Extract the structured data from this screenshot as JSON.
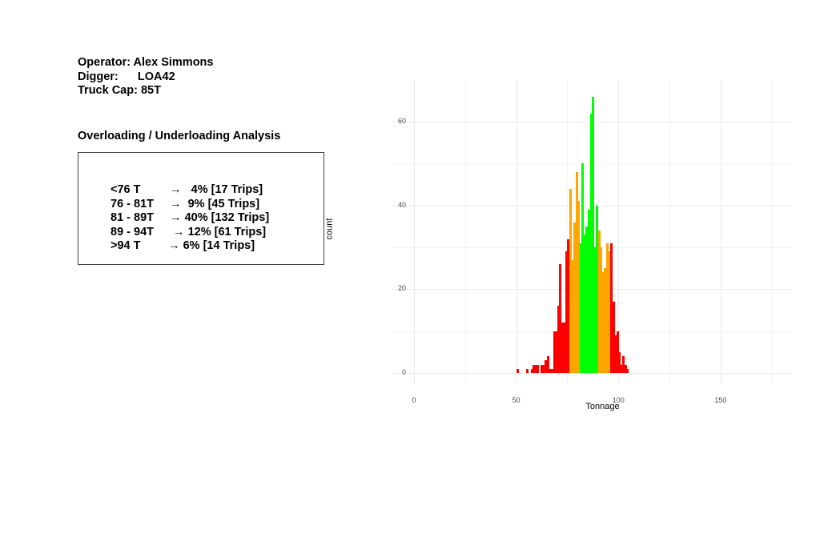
{
  "info": {
    "operator": "Operator: Alex Simmons",
    "digger": "Digger:      LOA42",
    "truck_cap": "Truck Cap: 85T"
  },
  "analysis": {
    "title": "Overloading / Underloading Analysis",
    "rows": [
      {
        "range": "<76 T",
        "arrow": "  →",
        "value": "   4% [17 Trips]"
      },
      {
        "range": "76 - 81T",
        "arrow": "  →",
        "value": "  9% [45 Trips]"
      },
      {
        "range": "81 - 89T",
        "arrow": "  →",
        "value": " 40% [132 Trips]"
      },
      {
        "range": "89 - 94T",
        "arrow": "  →",
        "value": " 12% [61 Trips]"
      },
      {
        "range": ">94 T",
        "arrow": "   →",
        "value": " 6% [14 Trips]"
      }
    ]
  },
  "colors": {
    "red": "#ff0000",
    "orange": "#ffa500",
    "green": "#00ff00",
    "grid": "#ebebeb",
    "tick_text": "#4d4d4d"
  },
  "chart_data": {
    "type": "bar",
    "title": "",
    "xlabel": "Tonnage",
    "ylabel": "count",
    "xlim": [
      -10,
      185
    ],
    "ylim": [
      -3,
      68
    ],
    "x_ticks": [
      0,
      50,
      100,
      150
    ],
    "y_ticks": [
      0,
      20,
      40,
      60
    ],
    "grid": true,
    "legend": "none",
    "bin_width": 1,
    "color_bands": [
      {
        "range": "<76",
        "color": "red"
      },
      {
        "range": "76-81",
        "color": "orange"
      },
      {
        "range": "81-89",
        "color": "green"
      },
      {
        "range": "89-94",
        "color": "orange"
      },
      {
        "range": ">94",
        "color": "red"
      }
    ],
    "bins": [
      {
        "x": 50,
        "count": 1,
        "color": "red"
      },
      {
        "x": 55,
        "count": 1,
        "color": "red"
      },
      {
        "x": 57,
        "count": 1,
        "color": "red"
      },
      {
        "x": 58,
        "count": 2,
        "color": "red"
      },
      {
        "x": 59,
        "count": 2,
        "color": "red"
      },
      {
        "x": 60,
        "count": 2,
        "color": "red"
      },
      {
        "x": 62,
        "count": 2,
        "color": "red"
      },
      {
        "x": 63,
        "count": 2,
        "color": "red"
      },
      {
        "x": 64,
        "count": 3,
        "color": "red"
      },
      {
        "x": 65,
        "count": 4,
        "color": "red"
      },
      {
        "x": 66,
        "count": 1,
        "color": "red"
      },
      {
        "x": 67,
        "count": 1,
        "color": "red"
      },
      {
        "x": 68,
        "count": 10,
        "color": "red"
      },
      {
        "x": 69,
        "count": 10,
        "color": "red"
      },
      {
        "x": 70,
        "count": 16,
        "color": "red"
      },
      {
        "x": 71,
        "count": 26,
        "color": "red"
      },
      {
        "x": 72,
        "count": 12,
        "color": "red"
      },
      {
        "x": 73,
        "count": 12,
        "color": "red"
      },
      {
        "x": 74,
        "count": 29,
        "color": "red"
      },
      {
        "x": 75,
        "count": 32,
        "color": "red"
      },
      {
        "x": 76,
        "count": 44,
        "color": "orange"
      },
      {
        "x": 77,
        "count": 27,
        "color": "orange"
      },
      {
        "x": 78,
        "count": 36,
        "color": "orange"
      },
      {
        "x": 79,
        "count": 48,
        "color": "orange"
      },
      {
        "x": 80,
        "count": 41,
        "color": "orange"
      },
      {
        "x": 81,
        "count": 31,
        "color": "green"
      },
      {
        "x": 82,
        "count": 50,
        "color": "green"
      },
      {
        "x": 83,
        "count": 33,
        "color": "green"
      },
      {
        "x": 84,
        "count": 35,
        "color": "green"
      },
      {
        "x": 85,
        "count": 39,
        "color": "green"
      },
      {
        "x": 86,
        "count": 62,
        "color": "green"
      },
      {
        "x": 87,
        "count": 66,
        "color": "green"
      },
      {
        "x": 88,
        "count": 30,
        "color": "green"
      },
      {
        "x": 89,
        "count": 40,
        "color": "green"
      },
      {
        "x": 90,
        "count": 34,
        "color": "orange"
      },
      {
        "x": 91,
        "count": 30,
        "color": "orange"
      },
      {
        "x": 92,
        "count": 24,
        "color": "orange"
      },
      {
        "x": 93,
        "count": 25,
        "color": "orange"
      },
      {
        "x": 94,
        "count": 31,
        "color": "orange"
      },
      {
        "x": 95,
        "count": 29,
        "color": "orange"
      },
      {
        "x": 96,
        "count": 31,
        "color": "red"
      },
      {
        "x": 97,
        "count": 17,
        "color": "red"
      },
      {
        "x": 98,
        "count": 9,
        "color": "red"
      },
      {
        "x": 99,
        "count": 10,
        "color": "red"
      },
      {
        "x": 100,
        "count": 5,
        "color": "red"
      },
      {
        "x": 101,
        "count": 2,
        "color": "red"
      },
      {
        "x": 102,
        "count": 4,
        "color": "red"
      },
      {
        "x": 103,
        "count": 2,
        "color": "red"
      },
      {
        "x": 104,
        "count": 1,
        "color": "red"
      }
    ]
  }
}
